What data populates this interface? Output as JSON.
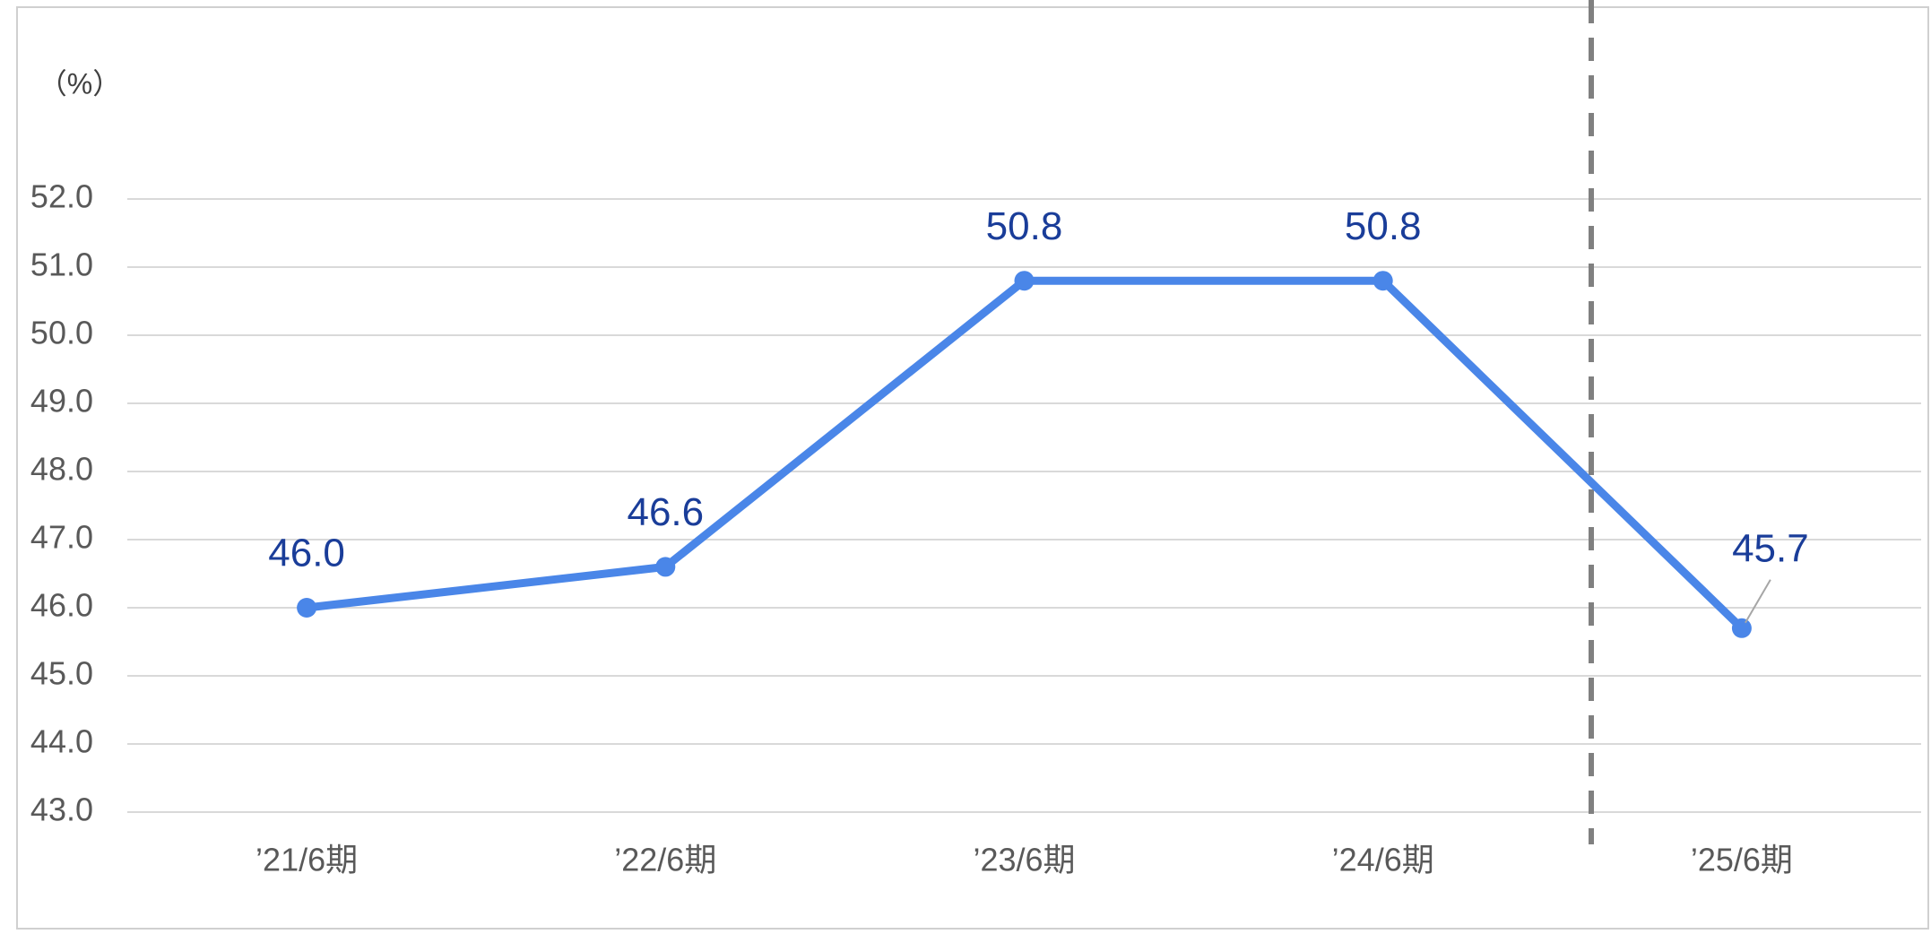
{
  "chart_data": {
    "type": "line",
    "y_label": "（%）",
    "categories": [
      "’21/6期",
      "’22/6期",
      "’23/6期",
      "’24/6期",
      "’25/6期"
    ],
    "series": [
      {
        "color": "#4a86e8",
        "values": [
          46.0,
          46.6,
          50.8,
          50.8,
          45.7
        ],
        "value_labels": [
          "46.0",
          "46.6",
          "50.8",
          "50.8",
          "45.7"
        ]
      }
    ],
    "ylim": [
      43,
      52
    ],
    "yticks": [
      {
        "value": 43,
        "label": "43.0"
      },
      {
        "value": 44,
        "label": "44.0"
      },
      {
        "value": 45,
        "label": "45.0"
      },
      {
        "value": 46,
        "label": "46.0"
      },
      {
        "value": 47,
        "label": "47.0"
      },
      {
        "value": 48,
        "label": "48.0"
      },
      {
        "value": 49,
        "label": "49.0"
      },
      {
        "value": 50,
        "label": "50.0"
      },
      {
        "value": 51,
        "label": "51.0"
      },
      {
        "value": 52,
        "label": "52.0"
      }
    ],
    "grid": true
  }
}
